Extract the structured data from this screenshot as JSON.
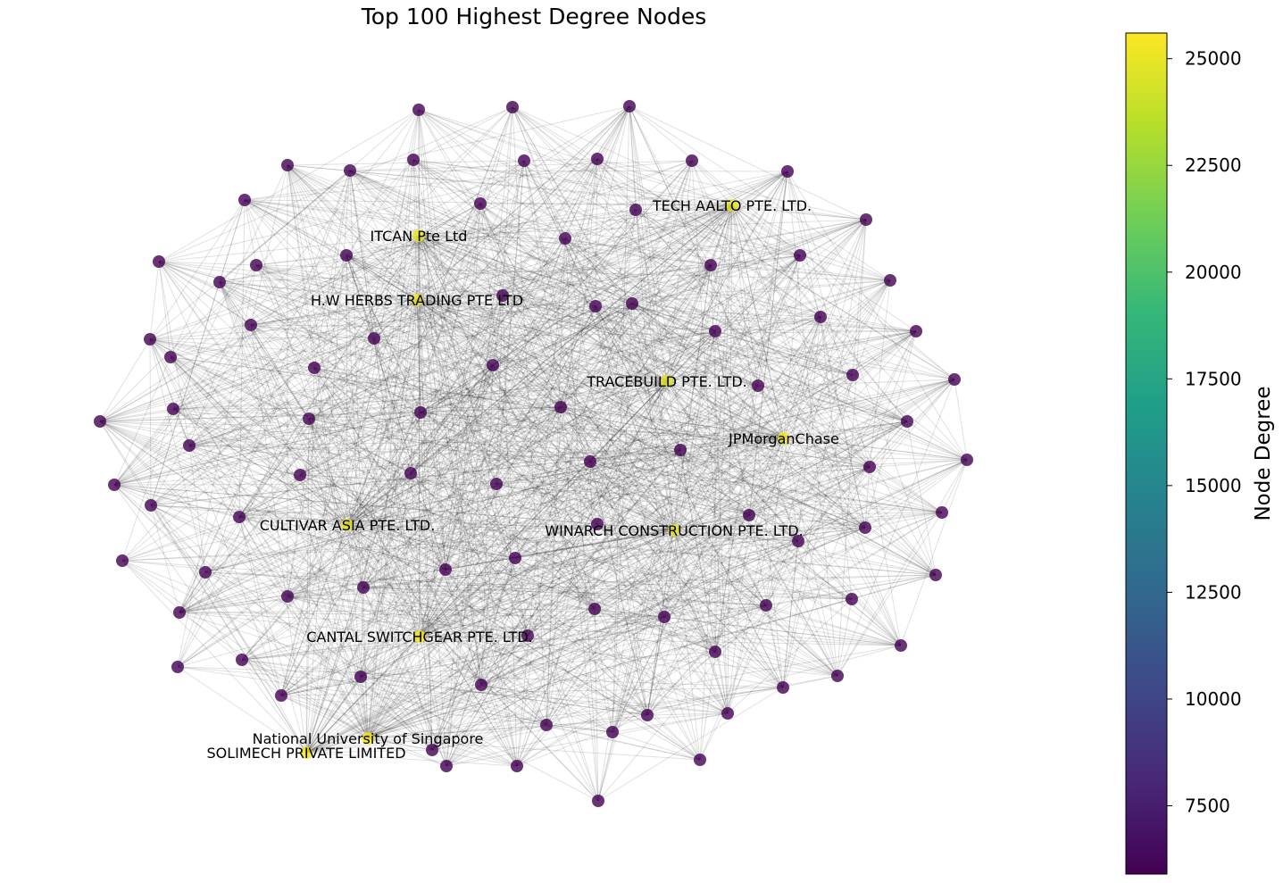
{
  "chart_data": {
    "type": "network",
    "title": "Top 100 Highest Degree Nodes",
    "colorbar": {
      "label": "Node Degree",
      "min": 5900,
      "max": 25600,
      "ticks": [
        "7500",
        "10000",
        "12500",
        "15000",
        "17500",
        "20000",
        "22500",
        "25000"
      ],
      "tick_values": [
        7500,
        10000,
        12500,
        15000,
        17500,
        20000,
        22500,
        25000
      ],
      "colormap": [
        "#440154",
        "#482878",
        "#3e4989",
        "#31688e",
        "#26828e",
        "#1f9e89",
        "#35b779",
        "#6ece58",
        "#b5de2b",
        "#fde725"
      ]
    },
    "node_count": 100,
    "labeled_nodes": [
      {
        "label": "ITCAN Pte Ltd",
        "degree": 25000
      },
      {
        "label": "TECH AALTO PTE. LTD.",
        "degree": 24800
      },
      {
        "label": "H.W HERBS TRADING PTE LTD",
        "degree": 25100
      },
      {
        "label": "TRACEBUILD PTE. LTD.",
        "degree": 24700
      },
      {
        "label": "JPMorganChase",
        "degree": 25200
      },
      {
        "label": "CULTIVAR ASIA PTE. LTD.",
        "degree": 24900
      },
      {
        "label": "WINARCH CONSTRUCTION PTE. LTD.",
        "degree": 25000
      },
      {
        "label": "CANTAL SWITCHGEAR PTE. LTD.",
        "degree": 25300
      },
      {
        "label": "National University of Singapore",
        "degree": 25400
      },
      {
        "label": "SOLIMECH PRIVATE LIMITED",
        "degree": 25100
      }
    ],
    "node_color": "#440154",
    "highlight_color": "#e3d32a",
    "edge_color": "#000000"
  }
}
